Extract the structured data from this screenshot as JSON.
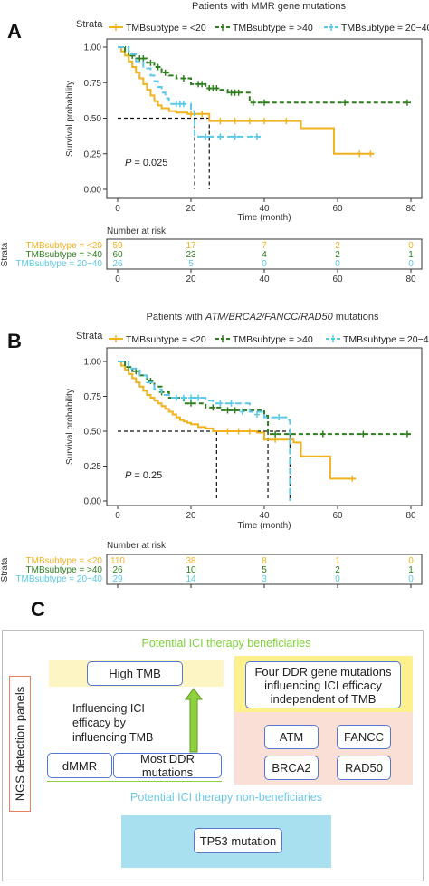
{
  "colors": {
    "lt20": "#f0b21e",
    "gt40": "#2e7d1e",
    "mid": "#5ac8e6"
  },
  "chart_data": [
    {
      "panel": "A",
      "type": "line",
      "title": "Patients with MMR gene mutations",
      "xlabel": "Time (month)",
      "ylabel": "Survival probability",
      "xlim": [
        0,
        80
      ],
      "ylim": [
        0,
        1
      ],
      "xticks": [
        0,
        20,
        40,
        60,
        80
      ],
      "yticks": [
        "0.00",
        "0.25",
        "0.50",
        "0.75",
        "1.00"
      ],
      "legend_title": "Strata",
      "legend_position": "top",
      "p_label": "P",
      "p_value": "= 0.025",
      "series": [
        {
          "name": "TMBsubtype = <20",
          "color": "#f0b21e",
          "points": [
            [
              0,
              1.0
            ],
            [
              1,
              0.97
            ],
            [
              2,
              0.94
            ],
            [
              3,
              0.9
            ],
            [
              4,
              0.86
            ],
            [
              5,
              0.82
            ],
            [
              6,
              0.78
            ],
            [
              7,
              0.74
            ],
            [
              8,
              0.7
            ],
            [
              9,
              0.66
            ],
            [
              10,
              0.62
            ],
            [
              11,
              0.59
            ],
            [
              12,
              0.57
            ],
            [
              14,
              0.55
            ],
            [
              16,
              0.54
            ],
            [
              19,
              0.53
            ],
            [
              22,
              0.53
            ],
            [
              25,
              0.48
            ],
            [
              48,
              0.48
            ],
            [
              50,
              0.43
            ],
            [
              59,
              0.43
            ],
            [
              59,
              0.25
            ],
            [
              70,
              0.25
            ]
          ],
          "censors": [
            [
              20,
              0.53
            ],
            [
              23,
              0.53
            ],
            [
              28,
              0.48
            ],
            [
              32,
              0.48
            ],
            [
              36,
              0.48
            ],
            [
              40,
              0.48
            ],
            [
              46,
              0.48
            ],
            [
              66,
              0.25
            ],
            [
              69,
              0.25
            ]
          ]
        },
        {
          "name": "TMBsubtype = >40",
          "color": "#2e7d1e",
          "points": [
            [
              0,
              1.0
            ],
            [
              2,
              0.97
            ],
            [
              3,
              0.94
            ],
            [
              5,
              0.92
            ],
            [
              8,
              0.89
            ],
            [
              10,
              0.86
            ],
            [
              12,
              0.82
            ],
            [
              14,
              0.8
            ],
            [
              16,
              0.78
            ],
            [
              20,
              0.74
            ],
            [
              24,
              0.71
            ],
            [
              28,
              0.7
            ],
            [
              30,
              0.68
            ],
            [
              34,
              0.68
            ],
            [
              36,
              0.61
            ],
            [
              80,
              0.61
            ]
          ],
          "censors": [
            [
              4,
              0.94
            ],
            [
              6,
              0.92
            ],
            [
              7,
              0.92
            ],
            [
              9,
              0.89
            ],
            [
              11,
              0.86
            ],
            [
              13,
              0.82
            ],
            [
              18,
              0.78
            ],
            [
              22,
              0.74
            ],
            [
              23,
              0.74
            ],
            [
              25,
              0.71
            ],
            [
              26,
              0.71
            ],
            [
              27,
              0.71
            ],
            [
              31,
              0.68
            ],
            [
              32,
              0.68
            ],
            [
              33,
              0.68
            ],
            [
              37,
              0.61
            ],
            [
              40,
              0.61
            ],
            [
              62,
              0.61
            ],
            [
              79,
              0.61
            ]
          ]
        },
        {
          "name": "TMBsubtype = 20−40",
          "color": "#5ac8e6",
          "points": [
            [
              0,
              1.0
            ],
            [
              3,
              0.95
            ],
            [
              5,
              0.9
            ],
            [
              7,
              0.85
            ],
            [
              9,
              0.8
            ],
            [
              10,
              0.76
            ],
            [
              11,
              0.72
            ],
            [
              12,
              0.68
            ],
            [
              13,
              0.64
            ],
            [
              14,
              0.6
            ],
            [
              20,
              0.55
            ],
            [
              21,
              0.37
            ],
            [
              39,
              0.37
            ]
          ],
          "censors": [
            [
              16,
              0.6
            ],
            [
              17,
              0.6
            ],
            [
              18,
              0.6
            ],
            [
              24,
              0.37
            ],
            [
              28,
              0.37
            ],
            [
              32,
              0.37
            ],
            [
              38,
              0.37
            ]
          ]
        }
      ],
      "median_lines": [
        21,
        25
      ],
      "risk_table": {
        "header": "Number at risk",
        "axis_label": "Strata",
        "rows": [
          {
            "label": "TMBsubtype = <20",
            "color": "#f0b21e",
            "values": [
              "59",
              "17",
              "7",
              "2",
              "0"
            ]
          },
          {
            "label": "TMBsubtype = >40",
            "color": "#2e7d1e",
            "values": [
              "60",
              "23",
              "4",
              "2",
              "1"
            ]
          },
          {
            "label": "TMBsubtype = 20−40",
            "color": "#5ac8e6",
            "values": [
              "26",
              "5",
              "0",
              "0",
              "0"
            ]
          }
        ]
      }
    },
    {
      "panel": "B",
      "type": "line",
      "title_parts": [
        "Patients with ",
        "ATM/BRCA2/FANCC/RAD50",
        " mutations"
      ],
      "xlabel": "Time (month)",
      "ylabel": "Survival probability",
      "xlim": [
        0,
        80
      ],
      "ylim": [
        0,
        1
      ],
      "xticks": [
        0,
        20,
        40,
        60,
        80
      ],
      "yticks": [
        "0.00",
        "0.25",
        "0.50",
        "0.75",
        "1.00"
      ],
      "legend_title": "Strata",
      "legend_position": "top",
      "p_label": "P",
      "p_value": "= 0.25",
      "series": [
        {
          "name": "TMBsubtype = <20",
          "color": "#f0b21e",
          "points": [
            [
              0,
              1.0
            ],
            [
              1,
              0.97
            ],
            [
              2,
              0.94
            ],
            [
              3,
              0.91
            ],
            [
              4,
              0.88
            ],
            [
              5,
              0.85
            ],
            [
              6,
              0.82
            ],
            [
              7,
              0.79
            ],
            [
              8,
              0.76
            ],
            [
              9,
              0.74
            ],
            [
              10,
              0.72
            ],
            [
              11,
              0.7
            ],
            [
              12,
              0.68
            ],
            [
              13,
              0.66
            ],
            [
              14,
              0.64
            ],
            [
              15,
              0.62
            ],
            [
              16,
              0.6
            ],
            [
              17,
              0.58
            ],
            [
              18,
              0.57
            ],
            [
              19,
              0.56
            ],
            [
              20,
              0.55
            ],
            [
              22,
              0.53
            ],
            [
              24,
              0.52
            ],
            [
              26,
              0.5
            ],
            [
              38,
              0.49
            ],
            [
              40,
              0.44
            ],
            [
              48,
              0.42
            ],
            [
              50,
              0.32
            ],
            [
              58,
              0.32
            ],
            [
              58,
              0.16
            ],
            [
              65,
              0.16
            ]
          ],
          "censors": [
            [
              30,
              0.5
            ],
            [
              33,
              0.5
            ],
            [
              36,
              0.5
            ],
            [
              43,
              0.44
            ],
            [
              64,
              0.16
            ]
          ]
        },
        {
          "name": "TMBsubtype = >40",
          "color": "#2e7d1e",
          "points": [
            [
              0,
              1.0
            ],
            [
              2,
              0.96
            ],
            [
              4,
              0.93
            ],
            [
              6,
              0.9
            ],
            [
              8,
              0.86
            ],
            [
              10,
              0.82
            ],
            [
              12,
              0.78
            ],
            [
              14,
              0.74
            ],
            [
              18,
              0.7
            ],
            [
              24,
              0.67
            ],
            [
              28,
              0.65
            ],
            [
              34,
              0.65
            ],
            [
              40,
              0.61
            ],
            [
              41,
              0.48
            ],
            [
              80,
              0.48
            ]
          ],
          "censors": [
            [
              3,
              0.96
            ],
            [
              5,
              0.93
            ],
            [
              9,
              0.86
            ],
            [
              12,
              0.78
            ],
            [
              16,
              0.74
            ],
            [
              20,
              0.7
            ],
            [
              26,
              0.67
            ],
            [
              30,
              0.65
            ],
            [
              32,
              0.65
            ],
            [
              43,
              0.48
            ],
            [
              47,
              0.48
            ],
            [
              56,
              0.48
            ],
            [
              67,
              0.48
            ],
            [
              79,
              0.48
            ]
          ]
        },
        {
          "name": "TMBsubtype = 20−40",
          "color": "#5ac8e6",
          "points": [
            [
              0,
              1.0
            ],
            [
              3,
              0.95
            ],
            [
              6,
              0.9
            ],
            [
              8,
              0.85
            ],
            [
              10,
              0.8
            ],
            [
              12,
              0.76
            ],
            [
              14,
              0.74
            ],
            [
              24,
              0.72
            ],
            [
              26,
              0.7
            ],
            [
              36,
              0.64
            ],
            [
              40,
              0.6
            ],
            [
              46,
              0.58
            ],
            [
              47,
              0.0
            ]
          ],
          "censors": [
            [
              16,
              0.74
            ],
            [
              18,
              0.74
            ],
            [
              20,
              0.74
            ],
            [
              22,
              0.74
            ],
            [
              28,
              0.7
            ],
            [
              31,
              0.7
            ],
            [
              34,
              0.64
            ],
            [
              38,
              0.62
            ],
            [
              44,
              0.6
            ]
          ]
        }
      ],
      "median_lines": [
        27,
        41,
        47
      ],
      "risk_table": {
        "header": "Number at risk",
        "axis_label": "Strata",
        "rows": [
          {
            "label": "TMBsubtype = <20",
            "color": "#f0b21e",
            "values": [
              "110",
              "38",
              "8",
              "1",
              "0"
            ]
          },
          {
            "label": "TMBsubtype = >40",
            "color": "#2e7d1e",
            "values": [
              "26",
              "10",
              "5",
              "2",
              "1"
            ]
          },
          {
            "label": "TMBsubtype = 20−40",
            "color": "#5ac8e6",
            "values": [
              "29",
              "14",
              "3",
              "0",
              "0"
            ]
          }
        ]
      }
    }
  ],
  "panel_c": {
    "label": "C",
    "side_label": "NGS detection panels",
    "beneficiaries_title": "Potential ICI therapy beneficiaries",
    "high_tmb": "High TMB",
    "influence_text": "Influencing ICI efficacy by influencing TMB",
    "dmmr": "dMMR",
    "most_ddr": "Most DDR mutations",
    "four_ddr": "Four DDR gene mutations influencing ICI efficacy independent of TMB",
    "genes": [
      "ATM",
      "FANCC",
      "BRCA2",
      "RAD50"
    ],
    "non_beneficiaries_title": "Potential ICI therapy non-beneficiaries",
    "tp53": "TP53 mutation",
    "title_color": "#7fd13a",
    "non_title_color": "#6cc8e8"
  }
}
